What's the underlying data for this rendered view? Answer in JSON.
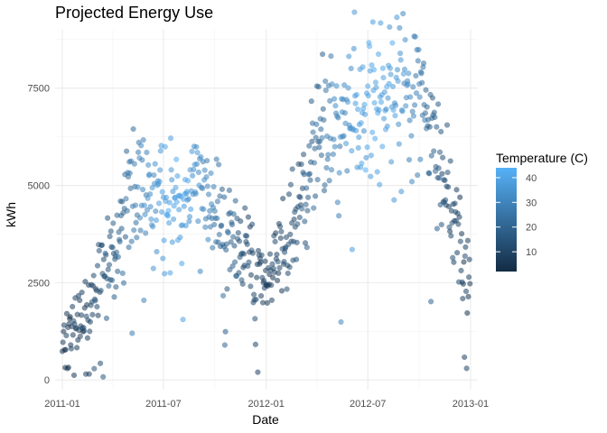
{
  "chart_data": {
    "type": "scatter",
    "title": "Projected Energy Use",
    "xlabel": "Date",
    "ylabel": "kWh",
    "x_ticks": [
      "2011-01",
      "2011-07",
      "2012-01",
      "2012-07",
      "2013-01"
    ],
    "y_ticks": [
      0,
      2500,
      5000,
      7500
    ],
    "xlim": [
      "2010-12-19",
      "2013-01-14"
    ],
    "ylim": [
      -250,
      9000
    ],
    "grid": true,
    "legend": {
      "title": "Temperature (C)",
      "placement": "right",
      "ticks": [
        10,
        20,
        30,
        40
      ],
      "range": [
        2,
        44
      ],
      "color_low": "#132B43",
      "color_high": "#56B1F7"
    },
    "point_alpha": 0.55,
    "anchors": [
      {
        "date": "2011-01-01",
        "kwh": 1000,
        "temp": 6
      },
      {
        "date": "2011-02-01",
        "kwh": 1500,
        "temp": 8
      },
      {
        "date": "2011-03-01",
        "kwh": 2200,
        "temp": 12
      },
      {
        "date": "2011-04-01",
        "kwh": 3300,
        "temp": 17
      },
      {
        "date": "2011-05-01",
        "kwh": 4500,
        "temp": 24
      },
      {
        "date": "2011-06-01",
        "kwh": 4900,
        "temp": 32
      },
      {
        "date": "2011-07-01",
        "kwh": 4700,
        "temp": 38
      },
      {
        "date": "2011-08-01",
        "kwh": 4300,
        "temp": 39
      },
      {
        "date": "2011-09-01",
        "kwh": 4700,
        "temp": 33
      },
      {
        "date": "2011-10-01",
        "kwh": 4500,
        "temp": 26
      },
      {
        "date": "2011-11-01",
        "kwh": 3800,
        "temp": 18
      },
      {
        "date": "2011-12-01",
        "kwh": 3000,
        "temp": 12
      },
      {
        "date": "2012-01-01",
        "kwh": 2600,
        "temp": 8
      },
      {
        "date": "2012-02-01",
        "kwh": 3500,
        "temp": 10
      },
      {
        "date": "2012-03-01",
        "kwh": 4500,
        "temp": 15
      },
      {
        "date": "2012-04-01",
        "kwh": 6200,
        "temp": 21
      },
      {
        "date": "2012-05-01",
        "kwh": 7000,
        "temp": 28
      },
      {
        "date": "2012-06-01",
        "kwh": 7100,
        "temp": 35
      },
      {
        "date": "2012-07-01",
        "kwh": 6900,
        "temp": 40
      },
      {
        "date": "2012-08-01",
        "kwh": 7200,
        "temp": 39
      },
      {
        "date": "2012-09-01",
        "kwh": 7600,
        "temp": 34
      },
      {
        "date": "2012-10-01",
        "kwh": 7400,
        "temp": 27
      },
      {
        "date": "2012-11-01",
        "kwh": 5800,
        "temp": 18
      },
      {
        "date": "2012-12-01",
        "kwh": 4200,
        "temp": 11
      },
      {
        "date": "2012-12-31",
        "kwh": 2500,
        "temp": 7
      }
    ]
  }
}
